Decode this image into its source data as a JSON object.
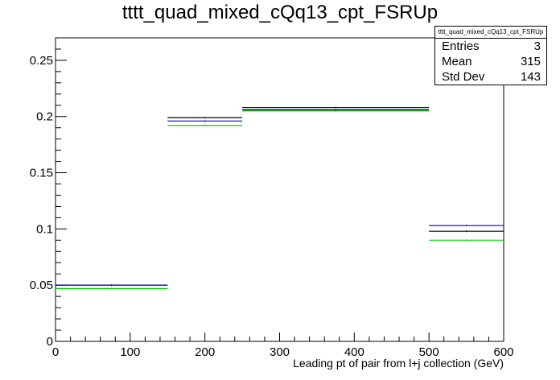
{
  "chart_data": {
    "type": "step",
    "title": "tttt_quad_mixed_cQq13_cpt_FSRUp",
    "xlabel": "Leading pt of pair from l+j collection (GeV)",
    "ylabel": "",
    "xlim": [
      0,
      600
    ],
    "ylim": [
      0,
      0.27
    ],
    "bin_edges": [
      0,
      150,
      250,
      500,
      600
    ],
    "x_ticks": [
      "0",
      "100",
      "200",
      "300",
      "400",
      "500",
      "600"
    ],
    "y_ticks": [
      "0",
      "0.05",
      "0.1",
      "0.15",
      "0.2",
      "0.25"
    ],
    "series": [
      {
        "color": "#000000",
        "values": [
          0.05,
          0.199,
          0.206,
          0.098
        ]
      },
      {
        "color": "#0000cc",
        "values": [
          0.05,
          0.196,
          0.208,
          0.103
        ]
      },
      {
        "color": "#00cc00",
        "values": [
          0.047,
          0.192,
          0.205,
          0.09
        ]
      }
    ],
    "stats_box": {
      "title": "tttt_quad_mixed_cQq13_cpt_FSRUp",
      "rows": [
        {
          "label": "Entries",
          "value": "3"
        },
        {
          "label": "Mean",
          "value": "315"
        },
        {
          "label": "Std Dev",
          "value": "143"
        }
      ]
    }
  }
}
